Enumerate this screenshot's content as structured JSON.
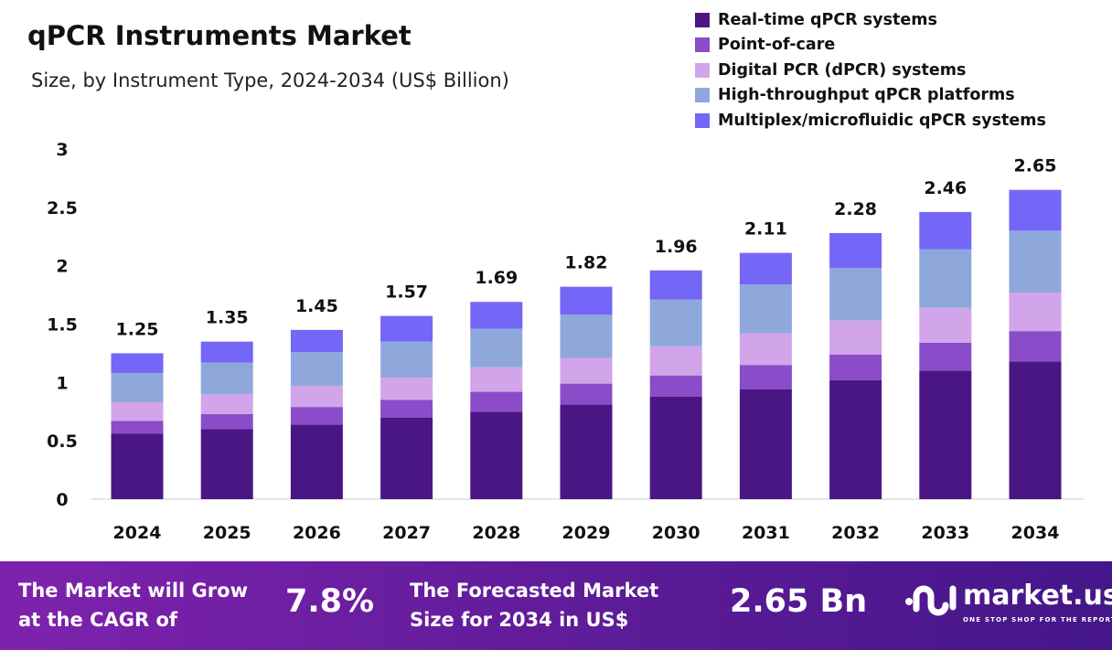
{
  "chart_data": {
    "type": "bar",
    "stacked": true,
    "title": "qPCR Instruments Market",
    "subtitle": "Size, by Instrument Type, 2024-2034 (US$ Billion)",
    "categories": [
      "2024",
      "2025",
      "2026",
      "2027",
      "2028",
      "2029",
      "2030",
      "2031",
      "2032",
      "2033",
      "2034"
    ],
    "totals": [
      "1.25",
      "1.35",
      "1.45",
      "1.57",
      "1.69",
      "1.82",
      "1.96",
      "2.11",
      "2.28",
      "2.46",
      "2.65"
    ],
    "series": [
      {
        "name": "Real-time qPCR systems",
        "color": "#4a1684",
        "values": [
          0.56,
          0.6,
          0.64,
          0.7,
          0.75,
          0.81,
          0.88,
          0.94,
          1.02,
          1.1,
          1.18
        ]
      },
      {
        "name": "Point-of-care",
        "color": "#8a4cc8",
        "values": [
          0.11,
          0.13,
          0.15,
          0.15,
          0.17,
          0.18,
          0.18,
          0.21,
          0.22,
          0.24,
          0.26
        ]
      },
      {
        "name": "Digital PCR (dPCR) systems",
        "color": "#d2a4ea",
        "values": [
          0.16,
          0.17,
          0.18,
          0.19,
          0.21,
          0.22,
          0.25,
          0.27,
          0.29,
          0.3,
          0.33
        ]
      },
      {
        "name": "High-throughput qPCR platforms",
        "color": "#8fa8dc",
        "values": [
          0.25,
          0.27,
          0.29,
          0.31,
          0.33,
          0.37,
          0.4,
          0.42,
          0.45,
          0.5,
          0.53
        ]
      },
      {
        "name": "Multiplex/microfluidic qPCR systems",
        "color": "#7466f6",
        "values": [
          0.17,
          0.18,
          0.19,
          0.22,
          0.23,
          0.24,
          0.25,
          0.27,
          0.3,
          0.32,
          0.35
        ]
      }
    ],
    "yticks": [
      "0",
      "0.5",
      "1",
      "1.5",
      "2",
      "2.5",
      "3"
    ],
    "ylim": [
      0,
      3
    ],
    "grid": false,
    "legend": "top-right"
  },
  "footer": {
    "cagr_label_1": "The Market will Grow",
    "cagr_label_2": "at the CAGR of",
    "cagr_value": "7.8%",
    "forecast_label_1": "The Forecasted Market",
    "forecast_label_2": "Size for 2034 in US$",
    "forecast_value": "2.65 Bn",
    "logo_text": "market.us",
    "logo_tagline": "ONE STOP SHOP FOR THE REPORTS"
  }
}
